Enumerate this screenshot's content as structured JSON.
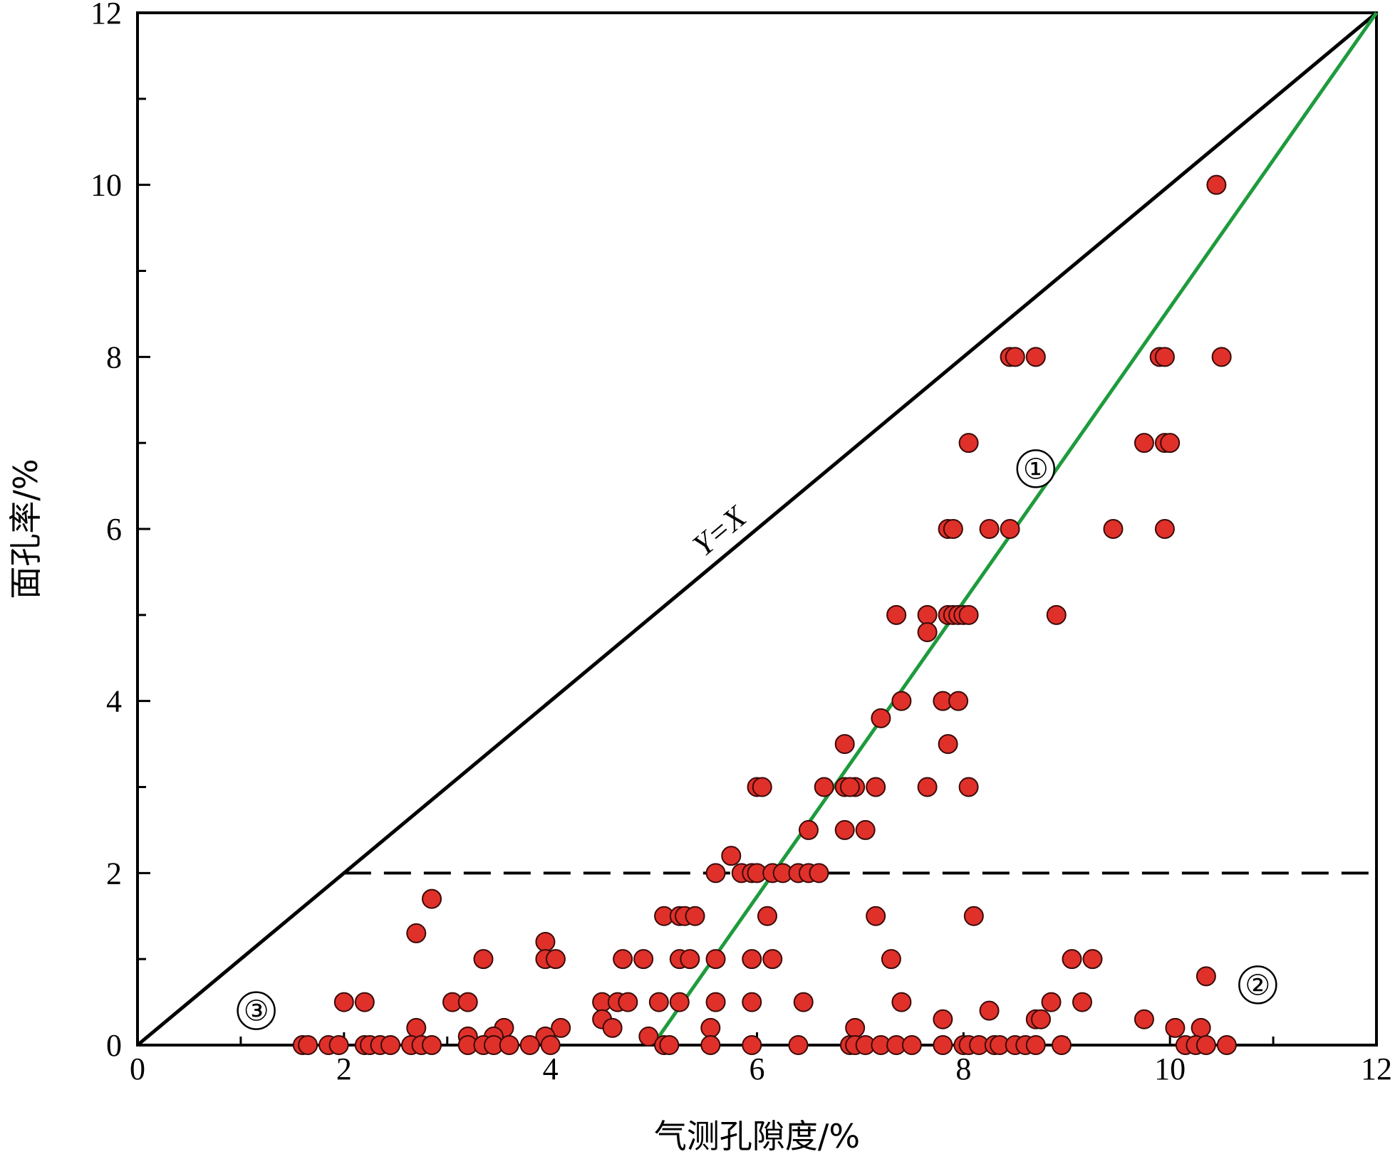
{
  "chart_data": {
    "type": "scatter",
    "xlabel": "气测孔隙度/%",
    "ylabel": "面孔率/%",
    "xlim": [
      0,
      12
    ],
    "ylim": [
      0,
      12
    ],
    "xticks": [
      0,
      2,
      4,
      6,
      8,
      10,
      12
    ],
    "yticks": [
      0,
      2,
      4,
      6,
      8,
      10,
      12
    ],
    "colors": {
      "points": "#e0302a",
      "point_edge": "#3a0a08",
      "trend": "#1e9b3c",
      "reference": "#000000"
    },
    "reference_line": {
      "label": "Y=X",
      "from": [
        0,
        0
      ],
      "to": [
        12,
        12
      ]
    },
    "trend_line": {
      "from": [
        5.05,
        0.1
      ],
      "to": [
        12,
        12
      ]
    },
    "threshold_line": {
      "y": 2,
      "x_from": 2,
      "x_to": 12,
      "style": "dashed"
    },
    "region_labels": [
      {
        "text": "①",
        "x": 8.7,
        "y": 6.7
      },
      {
        "text": "②",
        "x": 10.85,
        "y": 0.7
      },
      {
        "text": "③",
        "x": 1.15,
        "y": 0.4
      }
    ],
    "points": [
      [
        10.45,
        10
      ],
      [
        8.45,
        8
      ],
      [
        8.5,
        8
      ],
      [
        8.7,
        8
      ],
      [
        9.9,
        8
      ],
      [
        9.95,
        8
      ],
      [
        10.5,
        8
      ],
      [
        8.05,
        7
      ],
      [
        9.75,
        7
      ],
      [
        9.95,
        7
      ],
      [
        10.0,
        7
      ],
      [
        7.85,
        6
      ],
      [
        7.9,
        6
      ],
      [
        8.25,
        6
      ],
      [
        8.45,
        6
      ],
      [
        9.45,
        6
      ],
      [
        9.95,
        6
      ],
      [
        7.35,
        5
      ],
      [
        7.65,
        5
      ],
      [
        7.85,
        5
      ],
      [
        7.9,
        5
      ],
      [
        7.95,
        5
      ],
      [
        8.0,
        5
      ],
      [
        8.05,
        5
      ],
      [
        8.9,
        5
      ],
      [
        7.65,
        4.8
      ],
      [
        7.4,
        4
      ],
      [
        7.8,
        4
      ],
      [
        7.95,
        4
      ],
      [
        7.2,
        3.8
      ],
      [
        6.85,
        3.5
      ],
      [
        7.85,
        3.5
      ],
      [
        6.0,
        3
      ],
      [
        6.05,
        3
      ],
      [
        6.65,
        3
      ],
      [
        6.85,
        3
      ],
      [
        6.95,
        3
      ],
      [
        6.9,
        3
      ],
      [
        7.15,
        3
      ],
      [
        7.65,
        3
      ],
      [
        8.05,
        3
      ],
      [
        6.5,
        2.5
      ],
      [
        6.85,
        2.5
      ],
      [
        7.05,
        2.5
      ],
      [
        5.75,
        2.2
      ],
      [
        5.6,
        2
      ],
      [
        5.85,
        2
      ],
      [
        5.95,
        2
      ],
      [
        6.0,
        2
      ],
      [
        6.15,
        2
      ],
      [
        6.25,
        2
      ],
      [
        6.4,
        2
      ],
      [
        6.5,
        2
      ],
      [
        6.6,
        2
      ],
      [
        2.85,
        1.7
      ],
      [
        5.1,
        1.5
      ],
      [
        5.25,
        1.5
      ],
      [
        5.3,
        1.5
      ],
      [
        5.4,
        1.5
      ],
      [
        6.1,
        1.5
      ],
      [
        7.15,
        1.5
      ],
      [
        8.1,
        1.5
      ],
      [
        2.7,
        1.3
      ],
      [
        3.95,
        1.2
      ],
      [
        3.35,
        1
      ],
      [
        3.95,
        1
      ],
      [
        4.05,
        1
      ],
      [
        4.7,
        1
      ],
      [
        4.9,
        1
      ],
      [
        5.25,
        1
      ],
      [
        5.35,
        1
      ],
      [
        5.6,
        1
      ],
      [
        5.95,
        1
      ],
      [
        6.15,
        1
      ],
      [
        7.3,
        1
      ],
      [
        9.05,
        1
      ],
      [
        9.25,
        1
      ],
      [
        10.35,
        0.8
      ],
      [
        2.0,
        0.5
      ],
      [
        2.2,
        0.5
      ],
      [
        3.05,
        0.5
      ],
      [
        3.2,
        0.5
      ],
      [
        4.5,
        0.5
      ],
      [
        4.65,
        0.5
      ],
      [
        4.75,
        0.5
      ],
      [
        5.05,
        0.5
      ],
      [
        5.25,
        0.5
      ],
      [
        5.6,
        0.5
      ],
      [
        5.95,
        0.5
      ],
      [
        6.45,
        0.5
      ],
      [
        7.4,
        0.5
      ],
      [
        8.85,
        0.5
      ],
      [
        9.15,
        0.5
      ],
      [
        8.25,
        0.4
      ],
      [
        4.5,
        0.3
      ],
      [
        7.8,
        0.3
      ],
      [
        8.7,
        0.3
      ],
      [
        8.75,
        0.3
      ],
      [
        9.75,
        0.3
      ],
      [
        2.7,
        0.2
      ],
      [
        3.55,
        0.2
      ],
      [
        4.1,
        0.2
      ],
      [
        4.6,
        0.2
      ],
      [
        5.55,
        0.2
      ],
      [
        6.95,
        0.2
      ],
      [
        10.05,
        0.2
      ],
      [
        10.3,
        0.2
      ],
      [
        3.2,
        0.1
      ],
      [
        3.45,
        0.1
      ],
      [
        3.95,
        0.1
      ],
      [
        4.95,
        0.1
      ],
      [
        1.6,
        0
      ],
      [
        1.65,
        0
      ],
      [
        1.85,
        0
      ],
      [
        1.95,
        0
      ],
      [
        2.2,
        0
      ],
      [
        2.25,
        0
      ],
      [
        2.35,
        0
      ],
      [
        2.45,
        0
      ],
      [
        2.65,
        0
      ],
      [
        2.75,
        0
      ],
      [
        2.85,
        0
      ],
      [
        3.2,
        0
      ],
      [
        3.35,
        0
      ],
      [
        3.45,
        0
      ],
      [
        3.6,
        0
      ],
      [
        3.8,
        0
      ],
      [
        4.0,
        0
      ],
      [
        5.1,
        0
      ],
      [
        5.15,
        0
      ],
      [
        5.55,
        0
      ],
      [
        5.95,
        0
      ],
      [
        6.4,
        0
      ],
      [
        6.9,
        0
      ],
      [
        6.95,
        0
      ],
      [
        7.05,
        0
      ],
      [
        7.2,
        0
      ],
      [
        7.35,
        0
      ],
      [
        7.5,
        0
      ],
      [
        7.8,
        0
      ],
      [
        8.0,
        0
      ],
      [
        8.05,
        0
      ],
      [
        8.15,
        0
      ],
      [
        8.3,
        0
      ],
      [
        8.35,
        0
      ],
      [
        8.5,
        0
      ],
      [
        8.6,
        0
      ],
      [
        8.7,
        0
      ],
      [
        8.95,
        0
      ],
      [
        10.15,
        0
      ],
      [
        10.25,
        0
      ],
      [
        10.35,
        0
      ],
      [
        10.55,
        0
      ]
    ]
  }
}
